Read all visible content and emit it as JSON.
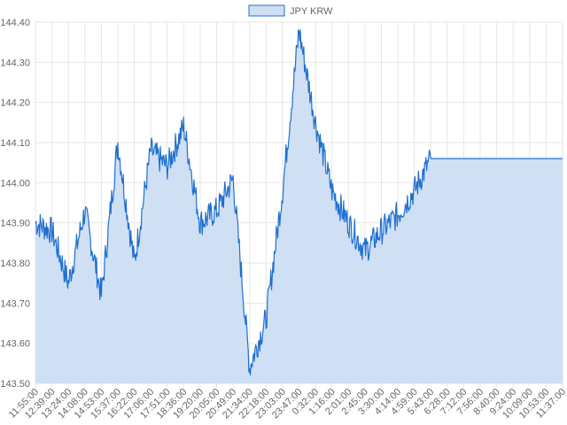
{
  "colors": {
    "line": "#1f6fd0",
    "fill": "#cfe0f4",
    "grid": "#e6e6e6",
    "axis_text": "#666666",
    "background": "#ffffff"
  },
  "chart_data": {
    "type": "area",
    "series": [
      {
        "name": "JPY KRW",
        "x": [
          "11:55:00",
          "12:39:00",
          "13:24:00",
          "14:08:00",
          "14:53:00",
          "15:37:00",
          "16:22:00",
          "17:06:00",
          "17:51:00",
          "18:36:00",
          "19:20:00",
          "20:05:00",
          "20:49:00",
          "21:34:00",
          "22:18:00",
          "23:03:00",
          "23:47:00",
          "0:32:00",
          "1:16:00",
          "2:01:00",
          "2:45:00",
          "3:30:00",
          "4:14:00",
          "4:59:00",
          "5:43:00",
          "6:28:00",
          "7:12:00",
          "7:56:00",
          "8:40:00",
          "9:24:00",
          "10:09:00",
          "10:53:00",
          "11:37:00"
        ],
        "values": [
          143.9,
          143.88,
          143.75,
          143.93,
          143.72,
          144.1,
          143.8,
          144.08,
          144.04,
          144.14,
          143.9,
          143.93,
          144.01,
          143.54,
          143.66,
          143.98,
          144.38,
          144.15,
          143.98,
          143.9,
          143.83,
          143.88,
          143.92,
          143.98,
          144.06,
          144.06,
          144.06,
          144.06,
          144.06,
          144.06,
          144.06,
          144.06,
          144.06
        ]
      }
    ],
    "x_ticks": [
      "11:55:00",
      "12:39:00",
      "13:24:00",
      "14:08:00",
      "14:53:00",
      "15:37:00",
      "16:22:00",
      "17:06:00",
      "17:51:00",
      "18:36:00",
      "19:20:00",
      "20:05:00",
      "20:49:00",
      "21:34:00",
      "22:18:00",
      "23:03:00",
      "23:47:00",
      "0:32:00",
      "1:16:00",
      "2:01:00",
      "2:45:00",
      "3:30:00",
      "4:14:00",
      "4:59:00",
      "5:43:00",
      "6:28:00",
      "7:12:00",
      "7:56:00",
      "8:40:00",
      "9:24:00",
      "10:09:00",
      "10:53:00",
      "11:37:00"
    ],
    "y_ticks": [
      "143.50",
      "143.60",
      "143.70",
      "143.80",
      "143.90",
      "144.00",
      "144.10",
      "144.20",
      "144.30",
      "144.40"
    ],
    "ylim": [
      143.5,
      144.4
    ],
    "grid": true,
    "legend": "top-center",
    "title": "",
    "xlabel": "",
    "ylabel": ""
  }
}
